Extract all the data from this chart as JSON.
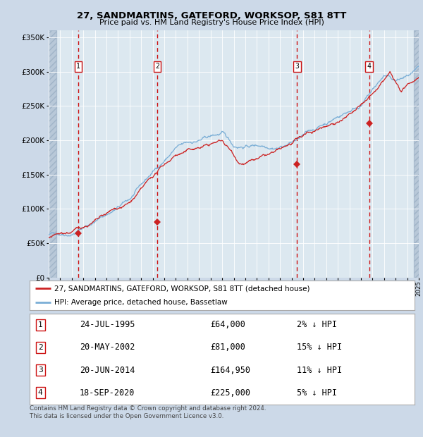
{
  "title": "27, SANDMARTINS, GATEFORD, WORKSOP, S81 8TT",
  "subtitle": "Price paid vs. HM Land Registry's House Price Index (HPI)",
  "footer": "Contains HM Land Registry data © Crown copyright and database right 2024.\nThis data is licensed under the Open Government Licence v3.0.",
  "legend_line1": "27, SANDMARTINS, GATEFORD, WORKSOP, S81 8TT (detached house)",
  "legend_line2": "HPI: Average price, detached house, Bassetlaw",
  "transactions": [
    {
      "num": 1,
      "date": "24-JUL-1995",
      "price": 64000,
      "hpi_diff": "2% ↓ HPI",
      "year": 1995.56
    },
    {
      "num": 2,
      "date": "20-MAY-2002",
      "price": 81000,
      "hpi_diff": "15% ↓ HPI",
      "year": 2002.38
    },
    {
      "num": 3,
      "date": "20-JUN-2014",
      "price": 164950,
      "hpi_diff": "11% ↓ HPI",
      "year": 2014.47
    },
    {
      "num": 4,
      "date": "18-SEP-2020",
      "price": 225000,
      "hpi_diff": "5% ↓ HPI",
      "year": 2020.72
    }
  ],
  "hpi_color": "#7aaed6",
  "price_color": "#cc2222",
  "background_color": "#ccd9e8",
  "plot_bg_color": "#dce8f0",
  "hatch_color": "#b8c8d8",
  "grid_color": "#ffffff",
  "xmin": 1993,
  "xmax": 2025,
  "ymin": 0,
  "ymax": 360000,
  "yticks": [
    0,
    50000,
    100000,
    150000,
    200000,
    250000,
    300000,
    350000
  ]
}
